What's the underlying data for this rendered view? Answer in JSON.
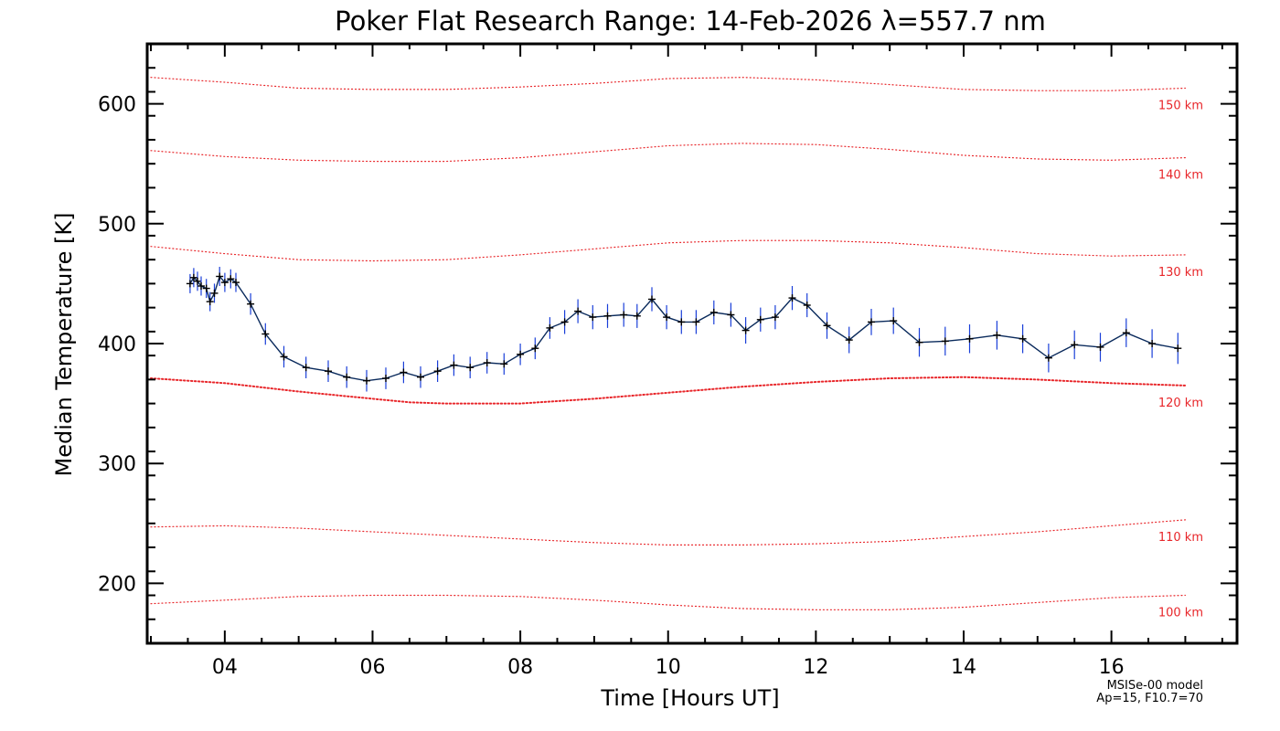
{
  "chart_data": {
    "type": "line",
    "title": "Poker Flat Research Range: 14-Feb-2026 λ=557.7 nm",
    "xlabel": "Time [Hours UT]",
    "ylabel": "Median Temperature [K]",
    "xlim": [
      2.95,
      17.7
    ],
    "ylim": [
      150,
      650
    ],
    "x_ticks": [
      4,
      6,
      8,
      10,
      12,
      14,
      16
    ],
    "x_tick_labels": [
      "04",
      "06",
      "08",
      "10",
      "12",
      "14",
      "16"
    ],
    "y_ticks": [
      200,
      300,
      400,
      500,
      600
    ],
    "y_tick_labels": [
      "200",
      "300",
      "400",
      "500",
      "600"
    ],
    "colors": {
      "data_line": "#0a2a5c",
      "error_bar": "#1a3fd8",
      "marker": "#000000",
      "model": "#e8262a",
      "frame": "#000000"
    },
    "series": [
      {
        "name": "Median Temperature",
        "x": [
          3.53,
          3.58,
          3.63,
          3.68,
          3.75,
          3.8,
          3.86,
          3.93,
          4.0,
          4.08,
          4.15,
          4.35,
          4.55,
          4.8,
          5.1,
          5.4,
          5.65,
          5.92,
          6.18,
          6.42,
          6.65,
          6.88,
          7.1,
          7.32,
          7.55,
          7.78,
          8.0,
          8.2,
          8.4,
          8.6,
          8.78,
          8.98,
          9.18,
          9.4,
          9.58,
          9.78,
          9.98,
          10.18,
          10.38,
          10.62,
          10.85,
          11.05,
          11.25,
          11.45,
          11.68,
          11.88,
          12.15,
          12.45,
          12.75,
          13.05,
          13.4,
          13.75,
          14.08,
          14.45,
          14.8,
          15.15,
          15.5,
          15.85,
          16.2,
          16.55,
          16.9
        ],
        "values": [
          450,
          455,
          452,
          448,
          446,
          435,
          442,
          456,
          451,
          454,
          451,
          433,
          408,
          389,
          380,
          377,
          372,
          369,
          371,
          376,
          372,
          377,
          382,
          380,
          384,
          383,
          391,
          396,
          413,
          418,
          427,
          422,
          423,
          424,
          423,
          437,
          422,
          418,
          418,
          426,
          424,
          411,
          420,
          422,
          438,
          432,
          415,
          403,
          418,
          419,
          401,
          402,
          404,
          407,
          404,
          388,
          399,
          397,
          409,
          400,
          396
        ],
        "errors": [
          8,
          8,
          8,
          8,
          8,
          8,
          8,
          8,
          8,
          8,
          8,
          9,
          9,
          9,
          9,
          9,
          9,
          9,
          9,
          9,
          9,
          9,
          9,
          9,
          9,
          9,
          9,
          9,
          9,
          10,
          10,
          10,
          10,
          10,
          10,
          10,
          10,
          10,
          10,
          10,
          10,
          11,
          10,
          10,
          10,
          10,
          11,
          11,
          11,
          11,
          12,
          12,
          12,
          12,
          12,
          12,
          12,
          12,
          12,
          12,
          13
        ]
      }
    ],
    "model_curves": [
      {
        "label": "150 km",
        "x": [
          3.0,
          4.0,
          5.0,
          6.0,
          7.0,
          8.0,
          9.0,
          10.0,
          11.0,
          12.0,
          13.0,
          14.0,
          15.0,
          16.0,
          17.0
        ],
        "values": [
          622,
          618,
          613,
          612,
          612,
          614,
          617,
          621,
          622,
          620,
          616,
          612,
          611,
          611,
          613
        ]
      },
      {
        "label": "140 km",
        "x": [
          3.0,
          4.0,
          5.0,
          6.0,
          7.0,
          8.0,
          9.0,
          10.0,
          11.0,
          12.0,
          13.0,
          14.0,
          15.0,
          16.0,
          17.0
        ],
        "values": [
          561,
          556,
          553,
          552,
          552,
          555,
          560,
          565,
          567,
          566,
          562,
          557,
          554,
          553,
          555
        ]
      },
      {
        "label": "130 km",
        "x": [
          3.0,
          4.0,
          5.0,
          6.0,
          7.0,
          8.0,
          9.0,
          10.0,
          11.0,
          12.0,
          13.0,
          14.0,
          15.0,
          16.0,
          17.0
        ],
        "values": [
          481,
          475,
          470,
          469,
          470,
          474,
          479,
          484,
          486,
          486,
          484,
          480,
          475,
          473,
          474
        ]
      },
      {
        "label": "120 km",
        "x": [
          3.0,
          4.0,
          5.0,
          6.0,
          6.5,
          7.0,
          8.0,
          9.0,
          10.0,
          11.0,
          12.0,
          13.0,
          14.0,
          15.0,
          16.0,
          17.0
        ],
        "values": [
          371,
          367,
          360,
          354,
          351,
          350,
          350,
          354,
          359,
          364,
          368,
          371,
          372,
          370,
          367,
          365
        ]
      },
      {
        "label": "110 km",
        "x": [
          3.0,
          4.0,
          5.0,
          6.0,
          7.0,
          8.0,
          9.0,
          10.0,
          11.0,
          12.0,
          13.0,
          14.0,
          15.0,
          16.0,
          17.0
        ],
        "values": [
          247,
          248,
          246,
          243,
          240,
          237,
          234,
          232,
          232,
          233,
          235,
          239,
          243,
          248,
          253
        ]
      },
      {
        "label": "100 km",
        "x": [
          3.0,
          4.0,
          5.0,
          6.0,
          7.0,
          8.0,
          9.0,
          10.0,
          11.0,
          12.0,
          13.0,
          14.0,
          15.0,
          16.0,
          17.0
        ],
        "values": [
          183,
          186,
          189,
          190,
          190,
          189,
          186,
          182,
          179,
          178,
          178,
          180,
          184,
          188,
          190
        ]
      }
    ],
    "model_note": [
      "MSISe-00 model",
      "Ap=15, F10.7=70"
    ]
  }
}
